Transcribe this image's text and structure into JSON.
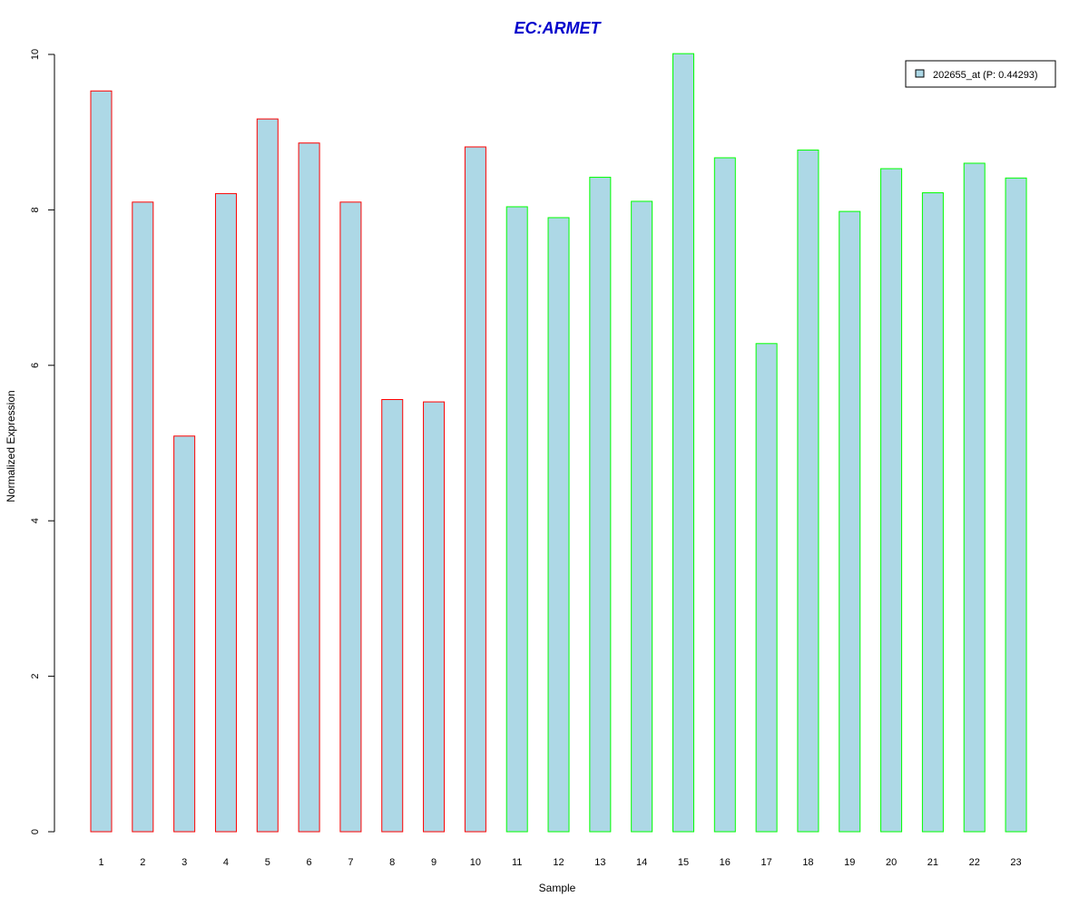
{
  "chart_data": {
    "type": "bar",
    "title": "EC:ARMET",
    "xlabel": "Sample",
    "ylabel": "Normalized Expression",
    "ylim": [
      0,
      10
    ],
    "yticks": [
      0,
      2,
      4,
      6,
      8,
      10
    ],
    "categories": [
      "1",
      "2",
      "3",
      "4",
      "5",
      "6",
      "7",
      "8",
      "9",
      "10",
      "11",
      "12",
      "13",
      "14",
      "15",
      "16",
      "17",
      "18",
      "19",
      "20",
      "21",
      "22",
      "23"
    ],
    "series": [
      {
        "name": "202655_at (P: 0.44293)",
        "values": [
          9.53,
          8.1,
          5.09,
          8.21,
          9.17,
          8.86,
          8.1,
          5.56,
          5.53,
          8.81,
          8.04,
          7.9,
          8.42,
          8.11,
          10.01,
          8.67,
          6.28,
          8.77,
          7.98,
          8.53,
          8.22,
          8.6,
          8.41
        ]
      }
    ],
    "groups": [
      "red",
      "red",
      "red",
      "red",
      "red",
      "red",
      "red",
      "red",
      "red",
      "red",
      "green",
      "green",
      "green",
      "green",
      "green",
      "green",
      "green",
      "green",
      "green",
      "green",
      "green",
      "green",
      "green"
    ],
    "legend": {
      "position": "top-right",
      "label": "202655_at (P: 0.44293)"
    },
    "grid": false
  },
  "colors": {
    "bar_fill": "#add8e6",
    "red": "#ff0000",
    "green": "#00ff00",
    "title": "#0000cc",
    "axis": "#000000"
  }
}
